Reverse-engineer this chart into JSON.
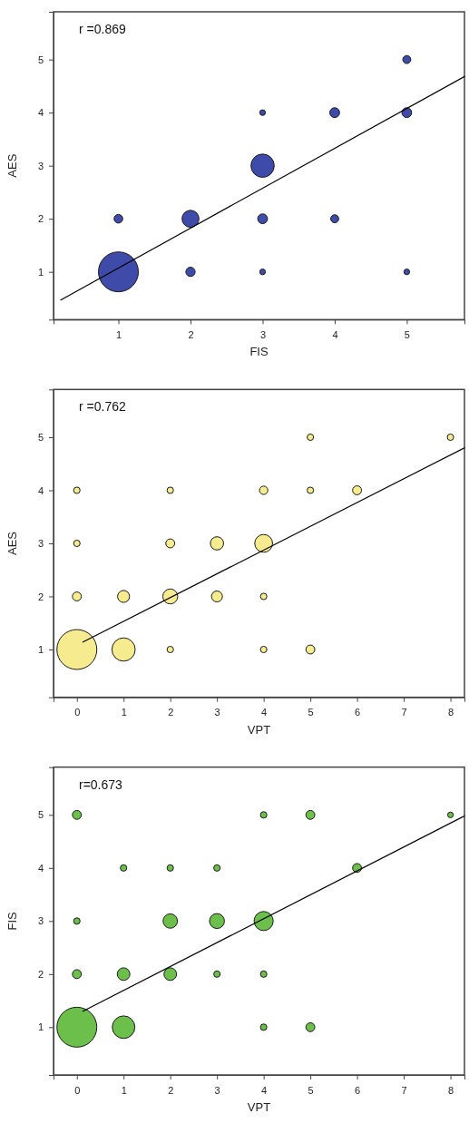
{
  "chart_data": [
    {
      "type": "bubble",
      "xlabel": "FIS",
      "ylabel": "AES",
      "annotations": [
        "r =0.869"
      ],
      "xlim": [
        0.1,
        5.8
      ],
      "xticks": [
        1,
        2,
        3,
        4,
        5
      ],
      "ylim": [
        0.1,
        5.9
      ],
      "yticks": [
        1,
        2,
        3,
        4,
        5
      ],
      "series": [
        {
          "color": "#3f4ba8",
          "x": [
            1,
            1,
            2,
            2,
            3,
            3,
            3,
            3,
            4,
            4,
            5,
            5,
            5
          ],
          "values": [
            1,
            2,
            1,
            2,
            1,
            2,
            3,
            4,
            2,
            4,
            1,
            4,
            5
          ],
          "sizes": [
            1,
            0.047,
            0.054,
            0.18,
            0.02,
            0.06,
            0.34,
            0.02,
            0.04,
            0.06,
            0.02,
            0.06,
            0.04
          ]
        },
        {
          "type": "line",
          "color": "#000000",
          "x": [
            0.2,
            5.8
          ],
          "values": [
            0.47,
            4.68
          ]
        }
      ]
    },
    {
      "type": "bubble",
      "xlabel": "VPT",
      "ylabel": "AES",
      "annotations": [
        "r =0.762"
      ],
      "xlim": [
        -0.5,
        8.3
      ],
      "xticks": [
        0,
        1,
        2,
        3,
        4,
        5,
        6,
        7,
        8
      ],
      "ylim": [
        0.1,
        5.9
      ],
      "yticks": [
        1,
        2,
        3,
        4,
        5
      ],
      "series": [
        {
          "color": "#f7eb8f",
          "x": [
            0,
            1,
            2,
            4,
            5,
            0,
            1,
            2,
            3,
            4,
            0,
            2,
            3,
            4,
            0,
            2,
            4,
            5,
            6,
            5,
            8
          ],
          "values": [
            1,
            1,
            1,
            1,
            1,
            2,
            2,
            2,
            2,
            2,
            3,
            3,
            3,
            3,
            4,
            4,
            4,
            4,
            4,
            5,
            5
          ],
          "sizes": [
            1,
            0.34,
            0.026,
            0.026,
            0.05,
            0.05,
            0.09,
            0.14,
            0.075,
            0.026,
            0.026,
            0.05,
            0.11,
            0.2,
            0.026,
            0.026,
            0.044,
            0.026,
            0.05,
            0.026,
            0.026
          ]
        },
        {
          "type": "line",
          "color": "#000000",
          "x": [
            0.13,
            8.3
          ],
          "values": [
            1.14,
            4.8
          ]
        }
      ]
    },
    {
      "type": "bubble",
      "xlabel": "VPT",
      "ylabel": "FIS",
      "annotations": [
        "r=0.673"
      ],
      "xlim": [
        -0.5,
        8.3
      ],
      "xticks": [
        0,
        1,
        2,
        3,
        4,
        5,
        6,
        7,
        8
      ],
      "ylim": [
        0.1,
        5.9
      ],
      "yticks": [
        1,
        2,
        3,
        4,
        5
      ],
      "series": [
        {
          "color": "#6bbf4a",
          "x": [
            0,
            1,
            4,
            5,
            0,
            1,
            2,
            3,
            4,
            0,
            2,
            3,
            4,
            1,
            2,
            3,
            6,
            0,
            4,
            5,
            8
          ],
          "values": [
            1,
            1,
            1,
            1,
            2,
            2,
            2,
            2,
            2,
            3,
            3,
            3,
            3,
            4,
            4,
            4,
            4,
            5,
            5,
            5,
            5
          ],
          "sizes": [
            1,
            0.32,
            0.026,
            0.05,
            0.05,
            0.1,
            0.1,
            0.026,
            0.026,
            0.026,
            0.13,
            0.14,
            0.23,
            0.026,
            0.026,
            0.026,
            0.05,
            0.05,
            0.026,
            0.05,
            0.02
          ]
        },
        {
          "type": "line",
          "color": "#000000",
          "x": [
            0.13,
            8.3
          ],
          "values": [
            1.3,
            4.98
          ]
        }
      ]
    }
  ]
}
